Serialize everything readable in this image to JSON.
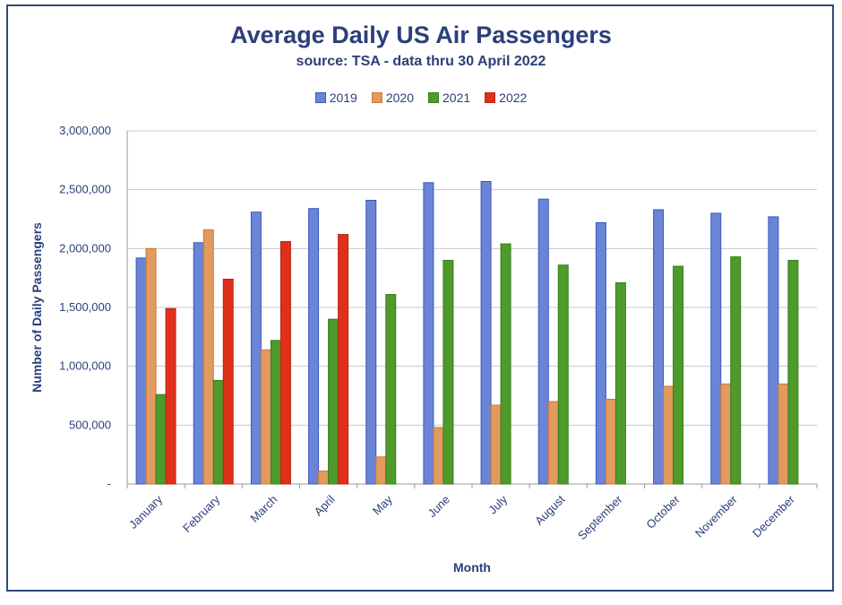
{
  "chart_data": {
    "type": "bar",
    "title": "Average Daily US Air Passengers",
    "subtitle": "source: TSA - data thru 30 April 2022",
    "xlabel": "Month",
    "ylabel": "Number of Daily Passengers",
    "ylim": [
      0,
      3000000
    ],
    "yticks": [
      0,
      500000,
      1000000,
      1500000,
      2000000,
      2500000,
      3000000
    ],
    "ytick_labels": [
      "-",
      "500,000",
      "1,000,000",
      "1,500,000",
      "2,000,000",
      "2,500,000",
      "3,000,000"
    ],
    "grid": true,
    "legend_position": "top-center",
    "categories": [
      "January",
      "February",
      "March",
      "April",
      "May",
      "June",
      "July",
      "August",
      "September",
      "October",
      "November",
      "December"
    ],
    "series": [
      {
        "name": "2019",
        "color": "#6a85d6",
        "stroke": "#3a56c4",
        "values": [
          1920000,
          2050000,
          2310000,
          2340000,
          2410000,
          2560000,
          2570000,
          2420000,
          2220000,
          2330000,
          2300000,
          2270000
        ]
      },
      {
        "name": "2020",
        "color": "#e29a5e",
        "stroke": "#c9793c",
        "values": [
          2000000,
          2160000,
          1140000,
          110000,
          230000,
          480000,
          670000,
          700000,
          720000,
          830000,
          850000,
          850000
        ]
      },
      {
        "name": "2021",
        "color": "#4e9a2a",
        "stroke": "#3c7d1f",
        "values": [
          760000,
          880000,
          1220000,
          1400000,
          1610000,
          1900000,
          2040000,
          1860000,
          1710000,
          1850000,
          1930000,
          1900000
        ]
      },
      {
        "name": "2022",
        "color": "#e0301a",
        "stroke": "#b82412",
        "values": [
          1490000,
          1740000,
          2060000,
          2120000,
          null,
          null,
          null,
          null,
          null,
          null,
          null,
          null
        ]
      }
    ]
  }
}
